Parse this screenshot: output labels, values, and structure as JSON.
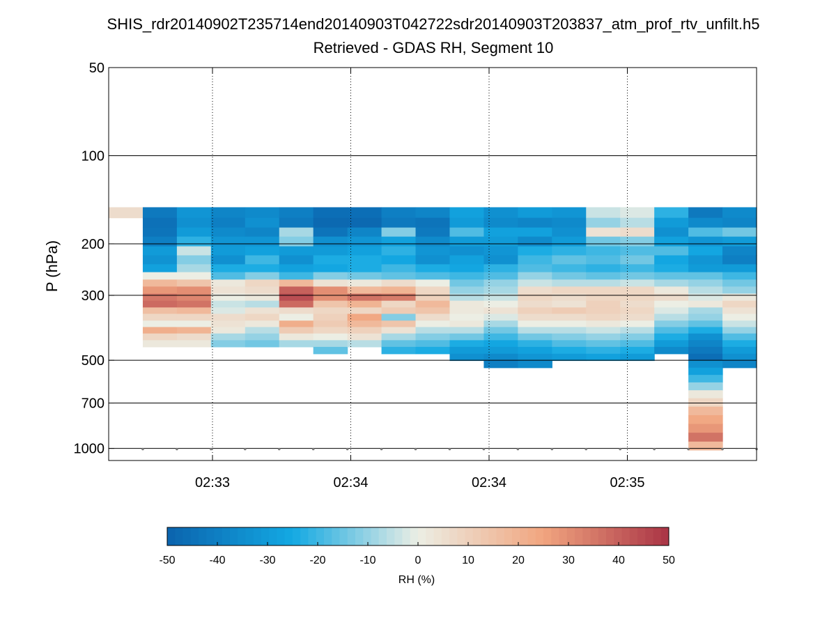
{
  "chart_data": {
    "type": "heatmap",
    "title": "SHIS_rdr20140902T235714end20140903T042722sdr20140903T203837_atm_prof_rtv_unfilt.h5",
    "subtitle": "Retrieved - GDAS RH, Segment 10",
    "ylabel": "P (hPa)",
    "xlabel": "",
    "y_scale": "log",
    "y_reversed": true,
    "ylim": [
      50,
      1100
    ],
    "y_ticks": [
      50,
      100,
      200,
      300,
      500,
      700,
      1000
    ],
    "x_tick_labels": [
      "02:33",
      "02:34",
      "02:34",
      "02:35"
    ],
    "grid": true,
    "colorbar": {
      "label": "RH (%)",
      "range": [
        -50,
        50
      ],
      "ticks": [
        -50,
        -40,
        -30,
        -20,
        -10,
        0,
        10,
        20,
        30,
        40,
        50
      ],
      "colors": [
        "#0b63ad",
        "#13a9e3",
        "#eceee4",
        "#f1a57f",
        "#a93345"
      ]
    },
    "n_columns": 19,
    "pressure_levels": [
      150,
      163,
      176,
      189,
      204,
      219,
      235,
      250,
      265,
      280,
      296,
      313,
      330,
      347,
      366,
      385,
      405,
      427,
      450,
      475,
      501,
      530,
      561,
      595,
      633,
      674,
      720,
      770,
      825,
      884,
      948,
      1013
    ],
    "column_profiles": [
      [
        6
      ],
      [
        -42,
        -45,
        -44,
        -40,
        -30,
        -33,
        -28,
        0,
        18,
        28,
        35,
        38,
        16,
        8,
        0,
        22,
        8,
        2
      ],
      [
        -32,
        -34,
        -30,
        -22,
        -4,
        -12,
        -8,
        0,
        14,
        30,
        32,
        36,
        18,
        8,
        0,
        20,
        6,
        2
      ],
      [
        -38,
        -40,
        -36,
        -32,
        -30,
        -34,
        -24,
        -18,
        2,
        4,
        0,
        -4,
        -2,
        6,
        4,
        2,
        -8,
        -12
      ],
      [
        -36,
        -34,
        -38,
        -32,
        -28,
        -20,
        -24,
        -12,
        8,
        6,
        2,
        -6,
        4,
        8,
        2,
        -6,
        -10,
        -14
      ],
      [
        -40,
        -42,
        -8,
        -12,
        -30,
        -34,
        -28,
        -20,
        18,
        40,
        44,
        38,
        6,
        0,
        22,
        12,
        2,
        -8
      ],
      [
        -46,
        -48,
        -44,
        -34,
        -30,
        -24,
        -26,
        -12,
        4,
        30,
        30,
        14,
        8,
        10,
        12,
        8,
        0,
        -8,
        -16
      ],
      [
        -46,
        -48,
        -38,
        -32,
        -28,
        -24,
        -24,
        -14,
        2,
        18,
        36,
        20,
        8,
        24,
        18,
        10,
        4,
        -6
      ],
      [
        -40,
        -42,
        -12,
        -28,
        -22,
        -26,
        -20,
        -16,
        6,
        20,
        34,
        8,
        12,
        -12,
        14,
        4,
        -8,
        -16,
        -22
      ],
      [
        -38,
        -44,
        -42,
        -36,
        -32,
        -34,
        -24,
        -18,
        0,
        8,
        10,
        18,
        14,
        6,
        0,
        -6,
        -12,
        -18,
        -24
      ],
      [
        -28,
        -30,
        -18,
        -30,
        -34,
        -28,
        -26,
        -20,
        -14,
        -10,
        -6,
        2,
        2,
        0,
        2,
        -6,
        -14,
        -24,
        -30,
        -34
      ],
      [
        -34,
        -36,
        -28,
        -30,
        -32,
        -34,
        -22,
        -18,
        -10,
        -8,
        -4,
        0,
        4,
        -2,
        -8,
        -14,
        -20,
        -26,
        -30,
        -36,
        -40
      ],
      [
        -30,
        -38,
        -28,
        -36,
        -24,
        -20,
        -18,
        -10,
        -4,
        6,
        8,
        6,
        10,
        6,
        0,
        -6,
        -14,
        -22,
        -28,
        -32,
        -36
      ],
      [
        -32,
        -36,
        -34,
        -30,
        -22,
        -16,
        -20,
        -14,
        -6,
        8,
        6,
        4,
        12,
        6,
        0,
        -6,
        -12,
        -18,
        -24,
        -30
      ],
      [
        -4,
        -10,
        4,
        -14,
        -20,
        -18,
        -22,
        -16,
        -6,
        8,
        8,
        10,
        10,
        8,
        2,
        -4,
        -10,
        -16,
        -22,
        -28
      ],
      [
        -2,
        -6,
        6,
        -12,
        -18,
        -14,
        -20,
        -14,
        -4,
        8,
        8,
        6,
        8,
        6,
        0,
        -6,
        -12,
        -18,
        -24,
        -30
      ],
      [
        -22,
        -30,
        -34,
        -28,
        -18,
        -26,
        -24,
        -16,
        -8,
        2,
        6,
        0,
        -2,
        -6,
        -12,
        -18,
        -24,
        -30,
        -36
      ],
      [
        -42,
        -36,
        -18,
        -32,
        -26,
        -32,
        -30,
        -16,
        -10,
        -6,
        -2,
        2,
        -8,
        -10,
        -16,
        -24,
        -34,
        -38,
        -42,
        -46,
        -34,
        -28,
        -20,
        -10,
        2,
        8,
        18,
        24,
        28,
        36,
        18,
        8
      ],
      [
        -36,
        -38,
        -14,
        -30,
        -38,
        -40,
        -30,
        -20,
        -14,
        -10,
        2,
        8,
        4,
        0,
        -4,
        -10,
        -18,
        -24,
        -30,
        -34,
        -38
      ]
    ]
  }
}
